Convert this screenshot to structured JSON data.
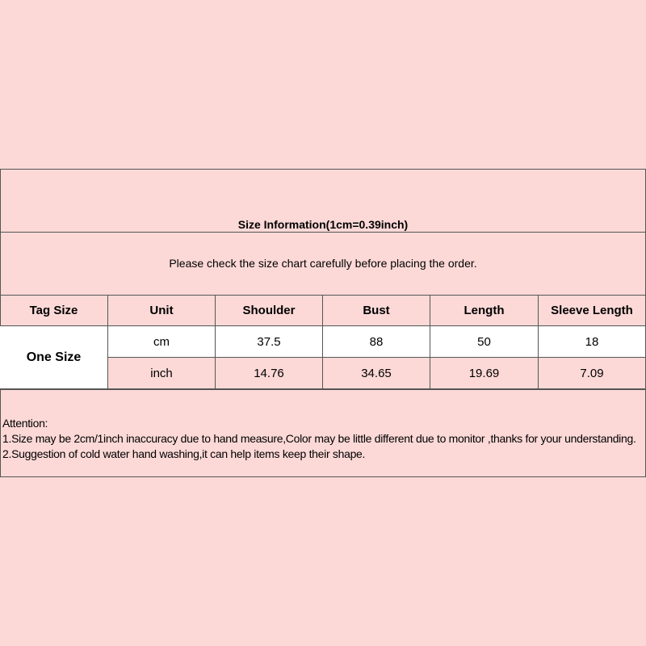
{
  "title": "Size Information(1cm=0.39inch)",
  "subtitle": "Please check the size chart carefully before placing the order.",
  "table": {
    "headers": [
      "Tag Size",
      "Unit",
      "Shoulder",
      "Bust",
      "Length",
      "Sleeve Length"
    ],
    "tag_size": "One Size",
    "rows": [
      {
        "unit": "cm",
        "values": [
          "37.5",
          "88",
          "50",
          "18"
        ]
      },
      {
        "unit": "inch",
        "values": [
          "14.76",
          "34.65",
          "19.69",
          "7.09"
        ]
      }
    ]
  },
  "notes": {
    "heading": "Attention:",
    "line1": "1.Size may be 2cm/1inch inaccuracy due to hand measure,Color may be little different due to monitor ,thanks for your understanding.",
    "line2": "2.Suggestion of cold water hand washing,it can help items keep their shape."
  },
  "colors": {
    "background": "#fcd9d7",
    "border": "#555555",
    "white_cell": "#ffffff"
  }
}
